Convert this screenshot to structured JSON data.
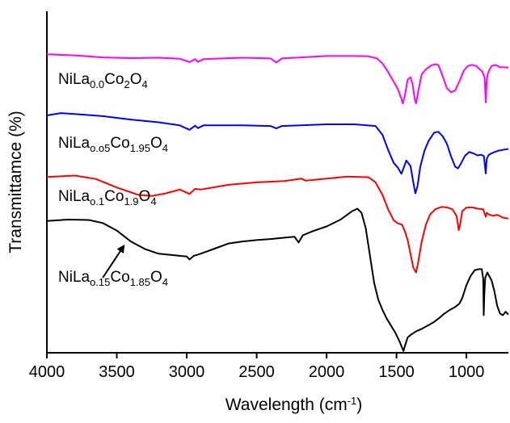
{
  "chart_data": {
    "type": "line",
    "title": "",
    "xlabel": "Wavelength (cm",
    "xlabel_sup": "-1",
    "xlabel_suffix": ")",
    "ylabel": "Transmittamce (%)",
    "x_reversed": true,
    "xlim": [
      4000,
      700
    ],
    "ylim": [
      0,
      100
    ],
    "x_ticks": [
      4000,
      3500,
      3000,
      2500,
      2000,
      1500,
      1000
    ],
    "x_tick_labels": [
      "4000",
      "3500",
      "3000",
      "2500",
      "2000",
      "1500",
      "1000"
    ],
    "y_ticks_shown": false,
    "grid": false,
    "series": [
      {
        "name": "NiLa0.0Co2O4",
        "label_parts": [
          {
            "t": "NiLa",
            "s": "n"
          },
          {
            "t": "0.0",
            "s": "sub"
          },
          {
            "t": "Co",
            "s": "n"
          },
          {
            "t": "2",
            "s": "sub"
          },
          {
            "t": "O",
            "s": "n"
          },
          {
            "t": "4",
            "s": "sub"
          }
        ],
        "color": "#ff00ff",
        "points": [
          [
            4000,
            87.4
          ],
          [
            3800,
            87.1
          ],
          [
            3600,
            86.5
          ],
          [
            3400,
            86.3
          ],
          [
            3200,
            86.4
          ],
          [
            3050,
            86.1
          ],
          [
            2980,
            85.1
          ],
          [
            2940,
            86.0
          ],
          [
            2920,
            85.2
          ],
          [
            2880,
            86.0
          ],
          [
            2600,
            86.4
          ],
          [
            2400,
            86.2
          ],
          [
            2360,
            85.0
          ],
          [
            2320,
            86.2
          ],
          [
            2000,
            86.9
          ],
          [
            1800,
            86.9
          ],
          [
            1700,
            86.8
          ],
          [
            1640,
            86.2
          ],
          [
            1600,
            84.7
          ],
          [
            1560,
            82.2
          ],
          [
            1520,
            79.4
          ],
          [
            1490,
            77.2
          ],
          [
            1470,
            75.0
          ],
          [
            1455,
            73.0
          ],
          [
            1440,
            75.4
          ],
          [
            1420,
            80.0
          ],
          [
            1400,
            80.7
          ],
          [
            1385,
            78.6
          ],
          [
            1370,
            74.3
          ],
          [
            1360,
            73.0
          ],
          [
            1345,
            76.5
          ],
          [
            1320,
            81.5
          ],
          [
            1290,
            83.0
          ],
          [
            1250,
            84.2
          ],
          [
            1220,
            84.5
          ],
          [
            1200,
            84.2
          ],
          [
            1170,
            81.0
          ],
          [
            1140,
            77.5
          ],
          [
            1110,
            76.3
          ],
          [
            1080,
            76.8
          ],
          [
            1050,
            79.5
          ],
          [
            1020,
            82.5
          ],
          [
            990,
            84.0
          ],
          [
            960,
            84.3
          ],
          [
            930,
            84.0
          ],
          [
            905,
            83.0
          ],
          [
            885,
            82.3
          ],
          [
            870,
            80.5
          ],
          [
            862,
            73.3
          ],
          [
            855,
            80.0
          ],
          [
            845,
            82.0
          ],
          [
            820,
            84.0
          ],
          [
            790,
            84.3
          ],
          [
            760,
            83.6
          ],
          [
            730,
            83.6
          ],
          [
            700,
            83.5
          ]
        ]
      },
      {
        "name": "NiLao.o5Co1.95O4",
        "label_parts": [
          {
            "t": "NiLa",
            "s": "n"
          },
          {
            "t": "o.o5",
            "s": "sub"
          },
          {
            "t": "Co",
            "s": "n"
          },
          {
            "t": "1.95",
            "s": "sub"
          },
          {
            "t": "O",
            "s": "n"
          },
          {
            "t": "4",
            "s": "sub"
          }
        ],
        "color": "#0000ff",
        "points": [
          [
            4000,
            69.5
          ],
          [
            3900,
            70.2
          ],
          [
            3800,
            69.9
          ],
          [
            3600,
            69.3
          ],
          [
            3400,
            68.3
          ],
          [
            3200,
            67.5
          ],
          [
            3050,
            66.6
          ],
          [
            2980,
            65.3
          ],
          [
            2940,
            66.5
          ],
          [
            2920,
            65.8
          ],
          [
            2880,
            66.6
          ],
          [
            2600,
            66.6
          ],
          [
            2400,
            66.4
          ],
          [
            2360,
            65.7
          ],
          [
            2320,
            66.4
          ],
          [
            2000,
            66.9
          ],
          [
            1800,
            66.9
          ],
          [
            1650,
            66.4
          ],
          [
            1600,
            63.8
          ],
          [
            1560,
            59.4
          ],
          [
            1520,
            55.6
          ],
          [
            1490,
            54.2
          ],
          [
            1465,
            52.4
          ],
          [
            1450,
            54.0
          ],
          [
            1430,
            56.3
          ],
          [
            1400,
            54.7
          ],
          [
            1380,
            50.0
          ],
          [
            1365,
            46.7
          ],
          [
            1350,
            48.7
          ],
          [
            1330,
            54.5
          ],
          [
            1300,
            59.2
          ],
          [
            1270,
            62.1
          ],
          [
            1230,
            64.5
          ],
          [
            1200,
            64.7
          ],
          [
            1170,
            63.4
          ],
          [
            1140,
            61.2
          ],
          [
            1110,
            57.5
          ],
          [
            1080,
            54.5
          ],
          [
            1060,
            54.0
          ],
          [
            1040,
            55.4
          ],
          [
            1010,
            57.7
          ],
          [
            980,
            58.8
          ],
          [
            950,
            58.4
          ],
          [
            920,
            57.8
          ],
          [
            895,
            58.0
          ],
          [
            875,
            57.6
          ],
          [
            862,
            52.5
          ],
          [
            855,
            56.8
          ],
          [
            840,
            58.0
          ],
          [
            810,
            58.6
          ],
          [
            770,
            59.2
          ],
          [
            730,
            59.5
          ],
          [
            700,
            59.7
          ]
        ]
      },
      {
        "name": "NiLao.1Co1.9O4",
        "label_parts": [
          {
            "t": "NiLa",
            "s": "n"
          },
          {
            "t": "o.1",
            "s": "sub"
          },
          {
            "t": "Co",
            "s": "n"
          },
          {
            "t": "1.9",
            "s": "sub"
          },
          {
            "t": "O",
            "s": "n"
          },
          {
            "t": "4",
            "s": "sub"
          }
        ],
        "color": "#ff0000",
        "points": [
          [
            4000,
            51.5
          ],
          [
            3800,
            51.9
          ],
          [
            3650,
            50.9
          ],
          [
            3500,
            48.4
          ],
          [
            3350,
            46.3
          ],
          [
            3250,
            45.9
          ],
          [
            3150,
            46.7
          ],
          [
            3050,
            47.8
          ],
          [
            2980,
            46.5
          ],
          [
            2940,
            48.0
          ],
          [
            2900,
            47.8
          ],
          [
            2700,
            49.2
          ],
          [
            2500,
            49.9
          ],
          [
            2300,
            50.3
          ],
          [
            2180,
            51.0
          ],
          [
            2150,
            50.4
          ],
          [
            2000,
            51.0
          ],
          [
            1850,
            51.6
          ],
          [
            1700,
            51.4
          ],
          [
            1650,
            49.9
          ],
          [
            1600,
            46.2
          ],
          [
            1560,
            42.0
          ],
          [
            1520,
            38.8
          ],
          [
            1490,
            37.9
          ],
          [
            1460,
            37.5
          ],
          [
            1440,
            35.5
          ],
          [
            1420,
            33.0
          ],
          [
            1400,
            29.0
          ],
          [
            1380,
            25.0
          ],
          [
            1360,
            23.5
          ],
          [
            1345,
            26.5
          ],
          [
            1320,
            32.5
          ],
          [
            1290,
            37.5
          ],
          [
            1260,
            40.5
          ],
          [
            1220,
            42.1
          ],
          [
            1180,
            42.7
          ],
          [
            1140,
            42.6
          ],
          [
            1100,
            42.0
          ],
          [
            1070,
            40.0
          ],
          [
            1055,
            35.9
          ],
          [
            1045,
            37.5
          ],
          [
            1030,
            41.5
          ],
          [
            1000,
            42.5
          ],
          [
            960,
            42.6
          ],
          [
            920,
            42.2
          ],
          [
            880,
            42.0
          ],
          [
            862,
            39.8
          ],
          [
            855,
            41.0
          ],
          [
            840,
            40.5
          ],
          [
            810,
            40.1
          ],
          [
            780,
            40.4
          ],
          [
            740,
            39.6
          ],
          [
            700,
            39.3
          ]
        ]
      },
      {
        "name": "NiLao.15Co1.85O4",
        "label_parts": [
          {
            "t": "NiLa",
            "s": "n"
          },
          {
            "t": "o.15",
            "s": "sub"
          },
          {
            "t": "Co",
            "s": "n"
          },
          {
            "t": "1.85",
            "s": "sub"
          },
          {
            "t": "O",
            "s": "n"
          },
          {
            "t": "4",
            "s": "sub"
          }
        ],
        "color": "#000000",
        "points": [
          [
            4000,
            38.6
          ],
          [
            3850,
            39.0
          ],
          [
            3700,
            38.9
          ],
          [
            3600,
            38.0
          ],
          [
            3500,
            35.8
          ],
          [
            3400,
            32.6
          ],
          [
            3300,
            30.4
          ],
          [
            3200,
            29.0
          ],
          [
            3100,
            28.6
          ],
          [
            3000,
            28.2
          ],
          [
            2980,
            27.3
          ],
          [
            2950,
            28.4
          ],
          [
            2900,
            29.0
          ],
          [
            2800,
            30.5
          ],
          [
            2700,
            32.0
          ],
          [
            2600,
            32.6
          ],
          [
            2500,
            33.0
          ],
          [
            2400,
            33.3
          ],
          [
            2300,
            33.7
          ],
          [
            2230,
            34.0
          ],
          [
            2200,
            32.3
          ],
          [
            2170,
            34.4
          ],
          [
            2100,
            35.6
          ],
          [
            2000,
            37.0
          ],
          [
            1900,
            39.0
          ],
          [
            1820,
            41.4
          ],
          [
            1780,
            42.2
          ],
          [
            1750,
            41.0
          ],
          [
            1720,
            36.5
          ],
          [
            1690,
            28.5
          ],
          [
            1660,
            20.5
          ],
          [
            1630,
            15.5
          ],
          [
            1600,
            12.5
          ],
          [
            1570,
            10.0
          ],
          [
            1540,
            8.0
          ],
          [
            1510,
            6.0
          ],
          [
            1480,
            3.5
          ],
          [
            1460,
            1.5
          ],
          [
            1450,
            0.5
          ],
          [
            1440,
            2.0
          ],
          [
            1420,
            4.5
          ],
          [
            1400,
            5.2
          ],
          [
            1360,
            6.3
          ],
          [
            1320,
            7.0
          ],
          [
            1280,
            7.9
          ],
          [
            1240,
            8.8
          ],
          [
            1200,
            10.0
          ],
          [
            1160,
            11.4
          ],
          [
            1120,
            12.5
          ],
          [
            1080,
            13.4
          ],
          [
            1050,
            14.4
          ],
          [
            1030,
            16.0
          ],
          [
            1000,
            19.8
          ],
          [
            970,
            22.5
          ],
          [
            940,
            24.2
          ],
          [
            910,
            24.5
          ],
          [
            890,
            24.5
          ],
          [
            880,
            21.6
          ],
          [
            876,
            11.0
          ],
          [
            872,
            17.0
          ],
          [
            865,
            22.0
          ],
          [
            850,
            23.5
          ],
          [
            820,
            21.2
          ],
          [
            800,
            18.0
          ],
          [
            780,
            13.7
          ],
          [
            760,
            11.5
          ],
          [
            740,
            11.0
          ],
          [
            720,
            12.0
          ],
          [
            700,
            11.2
          ]
        ]
      }
    ],
    "annotation": {
      "arrow_from": [
        3600,
        22.0
      ],
      "arrow_to": [
        3450,
        31.3
      ]
    }
  }
}
